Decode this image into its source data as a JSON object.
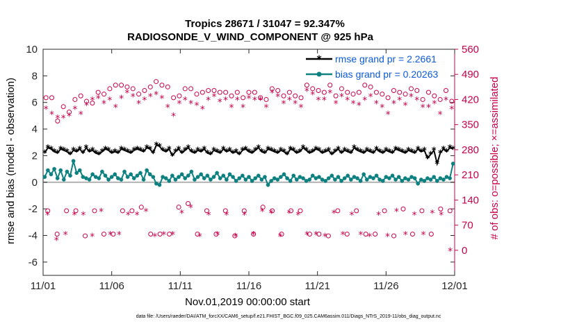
{
  "chart_data": {
    "type": "line",
    "title_line1": "Tropics 28671 / 31047 = 92.347%",
    "title_line2": "RADIOSONDE_V_WIND_COMPONENT @ 925 hPa",
    "xlabel": "Nov.01,2019 00:00:00 start",
    "ylabel_left": "rmse and bias (model - observation)",
    "ylabel_right": "# of obs: o=possible; ×=assimilated",
    "x_ticks": [
      "11/01",
      "11/06",
      "11/11",
      "11/16",
      "11/21",
      "11/26",
      "12/01"
    ],
    "x_range_days": [
      0,
      30
    ],
    "ylim_left": [
      -7,
      10
    ],
    "yticks_left": [
      -6,
      -4,
      -2,
      0,
      2,
      4,
      6,
      8,
      10
    ],
    "ylim_right": [
      -70,
      560
    ],
    "yticks_right": [
      0,
      70,
      140,
      210,
      280,
      350,
      420,
      490,
      560
    ],
    "series": [
      {
        "name": "rmse grand pr = 2.2661",
        "color": "#000000",
        "values": [
          2.2,
          2.6,
          2.5,
          2.3,
          2.2,
          2.5,
          2.4,
          2.3,
          2.1,
          2.4,
          2.3,
          2.5,
          2.2,
          2.6,
          2.3,
          2.4,
          2.2,
          2.1,
          2.3,
          2.5,
          2.4,
          2.2,
          2.3,
          2.2,
          2.5,
          2.4,
          2.3,
          2.2,
          2.4,
          2.5,
          2.4,
          2.3,
          2.6,
          2.5,
          2.2,
          2.8,
          2.7,
          2.4,
          2.3,
          2.5,
          2.0,
          2.3,
          2.5,
          2.2,
          2.4,
          2.6,
          2.3,
          2.2,
          2.4,
          2.3,
          2.5,
          2.2,
          2.1,
          2.4,
          2.3,
          2.2,
          2.5,
          2.3,
          2.4,
          2.2,
          2.3,
          2.1,
          2.4,
          2.5,
          2.3,
          2.2,
          2.4,
          2.6,
          2.3,
          2.2,
          2.5,
          2.4,
          2.3,
          2.2,
          2.4,
          2.3,
          2.1,
          2.5,
          2.4,
          2.2,
          2.3,
          2.6,
          2.4,
          2.2,
          2.3,
          2.5,
          2.4,
          2.2,
          2.3,
          2.4,
          2.1,
          2.3,
          2.5,
          2.2,
          2.4,
          2.3,
          2.2,
          2.6,
          2.4,
          2.3,
          2.2,
          2.4,
          2.3,
          2.2,
          2.5,
          2.3,
          2.2,
          2.4,
          2.3,
          2.2,
          2.5,
          2.4,
          2.3,
          2.2,
          2.4,
          2.3,
          2.2,
          2.5,
          2.3,
          2.4,
          1.8,
          2.1,
          2.4,
          1.4,
          2.2,
          2.5,
          2.3,
          2.6,
          2.5
        ]
      },
      {
        "name": "bias grand pr = 0.20263",
        "color": "#0d8080",
        "values": [
          0.4,
          0.9,
          0.6,
          1.0,
          0.3,
          0.9,
          0.2,
          0.8,
          0.5,
          1.6,
          0.7,
          0.9,
          0.4,
          0.3,
          0.2,
          0.6,
          0.4,
          0.3,
          0.8,
          0.5,
          0.2,
          0.4,
          0.6,
          0.3,
          0.2,
          0.8,
          0.4,
          0.6,
          0.3,
          0.5,
          0.7,
          0.2,
          0.9,
          0.6,
          0.4,
          -0.1,
          -0.2,
          0.4,
          0.3,
          0.1,
          0.5,
          0.2,
          0.4,
          0.6,
          0.3,
          0.5,
          0.8,
          0.2,
          0.4,
          0.6,
          0.3,
          0.5,
          0.2,
          0.4,
          0.7,
          0.3,
          0.5,
          0.2,
          0.6,
          0.4,
          0.1,
          0.3,
          0.5,
          0.2,
          0.4,
          0.1,
          0.3,
          0.5,
          0.2,
          0.4,
          -0.2,
          0.1,
          0.3,
          0.2,
          0.4,
          0.6,
          0.3,
          0.1,
          0.5,
          0.2,
          0.4,
          0.3,
          0.1,
          0.2,
          0.5,
          0.3,
          0.4,
          0.2,
          0.1,
          0.3,
          0.5,
          0.2,
          0.4,
          0.1,
          0.3,
          0.5,
          0.2,
          0.4,
          0.3,
          0.1,
          0.6,
          0.2,
          0.4,
          0.3,
          0.5,
          0.2,
          0.1,
          0.4,
          0.3,
          0.5,
          0.2,
          0.4,
          0.1,
          0.3,
          0.2,
          0.4,
          0.3,
          -0.1,
          0.2,
          0.1,
          0.3,
          0.2,
          0.4,
          0.1,
          0.3,
          0.2,
          0.4,
          0.3,
          1.4
        ]
      }
    ],
    "obs_possible_upper": [
      425,
      425,
      360,
      400,
      385,
      420,
      430,
      415,
      410,
      440,
      435,
      450,
      460,
      460,
      455,
      450,
      435,
      445,
      455,
      470,
      460,
      455,
      425,
      430,
      450,
      450,
      435,
      440,
      445,
      445,
      440,
      440,
      430,
      440,
      425,
      440,
      440,
      425,
      420,
      450,
      445,
      430,
      440,
      430,
      425,
      460,
      450,
      445,
      440,
      460,
      430,
      450,
      440,
      435,
      440,
      460,
      455,
      440,
      435,
      425,
      445,
      440,
      435,
      450,
      445,
      420,
      440,
      430,
      420,
      445,
      415
    ],
    "obs_assimilated_upper": [
      395,
      380,
      370,
      370,
      375,
      395,
      380,
      405,
      420,
      425,
      410,
      420,
      400,
      425,
      440,
      430,
      410,
      420,
      430,
      435,
      425,
      400,
      375,
      410,
      420,
      410,
      405,
      395,
      420,
      430,
      415,
      420,
      400,
      420,
      400,
      425,
      420,
      420,
      400,
      440,
      430,
      410,
      420,
      410,
      400,
      445,
      435,
      420,
      420,
      440,
      410,
      430,
      420,
      410,
      405,
      420,
      430,
      410,
      400,
      380,
      410,
      420,
      405,
      430,
      420,
      400,
      400,
      410,
      380,
      420,
      395
    ],
    "obs_possible_lower": [
      110,
      45,
      110,
      110,
      40,
      110,
      45,
      45,
      110,
      110,
      120,
      45,
      45,
      45,
      120,
      130,
      45,
      110,
      45,
      110,
      40,
      110,
      45,
      120,
      110,
      45,
      110,
      110,
      45,
      45,
      40,
      110,
      45,
      110,
      45,
      45,
      110,
      40,
      115,
      45,
      110,
      45,
      115,
      110
    ],
    "obs_assimilated_lower": [
      100,
      30,
      45,
      100,
      100,
      40,
      110,
      45,
      45,
      100,
      100,
      110,
      40,
      45,
      45,
      105,
      120,
      40,
      100,
      45,
      100,
      40,
      100,
      45,
      110,
      105,
      40,
      105,
      100,
      45,
      45,
      40,
      105,
      45,
      100,
      45,
      40,
      100,
      40,
      110,
      45,
      100,
      45,
      105,
      100,
      0
    ]
  },
  "footer": "data file: /Users/raeder/DAI/ATM_forcXX/CAM6_setup/f.e21.FHIST_BGC.f09_025.CAM6assim.011/Diags_NTrS_2019-11/obs_diag_output.nc",
  "colors": {
    "axis_left": "#000000",
    "axis_right": "#c8004a",
    "zero_line": "#b0b0b0",
    "legend_text": "#0a5ad6"
  }
}
